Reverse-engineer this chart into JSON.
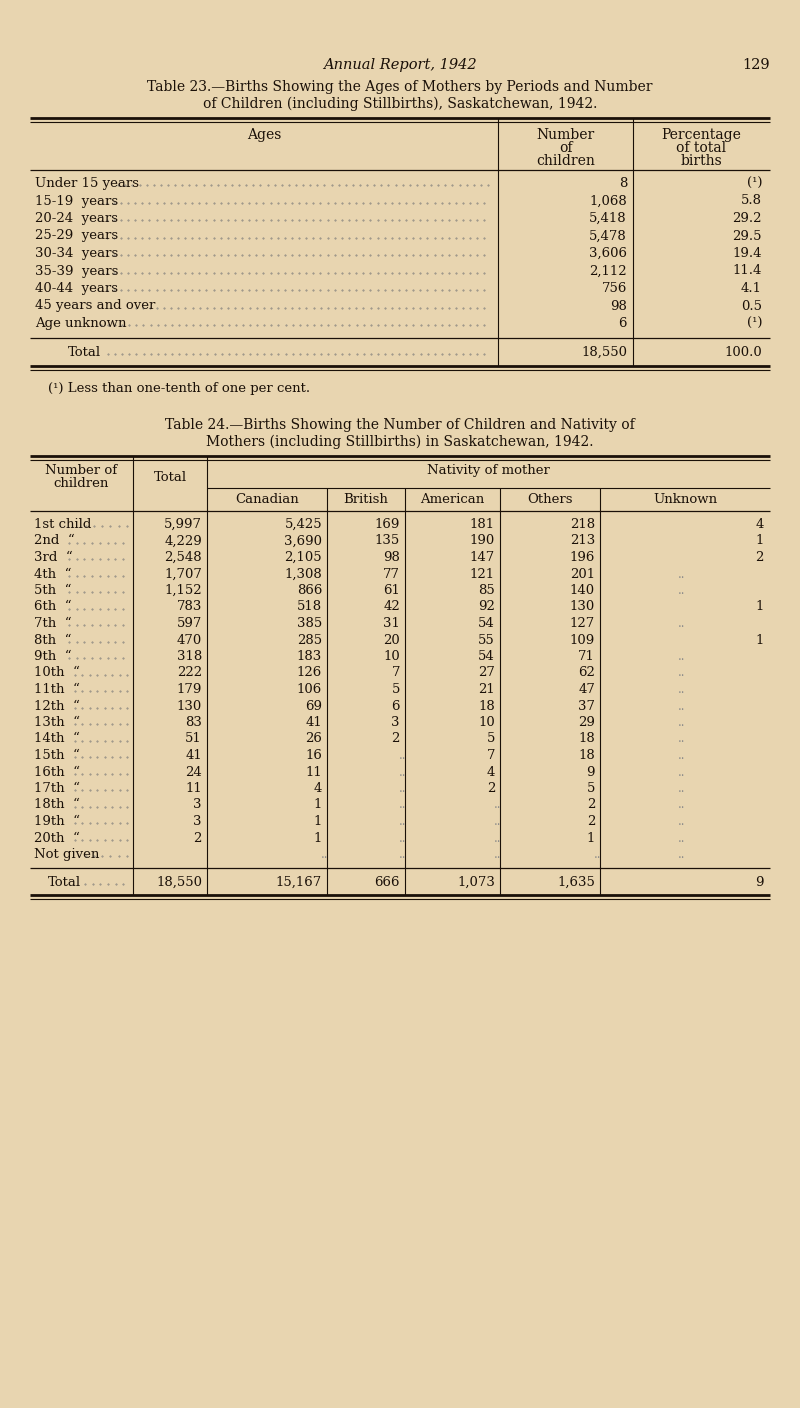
{
  "bg_color": "#e8d5b0",
  "text_color": "#1a1008",
  "page_header": "Annual Report, 1942",
  "page_number": "129",
  "table23_title_line1": "Table 23.—Births Showing the Ages of Mothers by Periods and Number",
  "table23_title_line2": "of Children (including Stillbirths), Saskatchewan, 1942.",
  "table23_rows": [
    [
      "Under 15 years",
      "8",
      "(¹)"
    ],
    [
      "15-19  years",
      "1,068",
      "5.8"
    ],
    [
      "20-24  years",
      "5,418",
      "29.2"
    ],
    [
      "25-29  years",
      "5,478",
      "29.5"
    ],
    [
      "30-34  years",
      "3,606",
      "19.4"
    ],
    [
      "35-39  years",
      "2,112",
      "11.4"
    ],
    [
      "40-44  years",
      "756",
      "4.1"
    ],
    [
      "45 years and over",
      "98",
      "0.5"
    ],
    [
      "Age unknown",
      "6",
      "(¹)"
    ]
  ],
  "table23_total_row": [
    "Total",
    "18,550",
    "100.0"
  ],
  "table23_footnote": "(¹) Less than one-tenth of one per cent.",
  "table24_title_line1": "Table 24.—Births Showing the Number of Children and Nativity of",
  "table24_title_line2": "Mothers (including Stillbirths) in Saskatchewan, 1942.",
  "table24_rows": [
    [
      "1st child",
      "5,997",
      "5,425",
      "169",
      "181",
      "218",
      "4"
    ],
    [
      "2nd  “",
      "4,229",
      "3,690",
      "135",
      "190",
      "213",
      "1"
    ],
    [
      "3rd  “",
      "2,548",
      "2,105",
      "98",
      "147",
      "196",
      "2"
    ],
    [
      "4th  “",
      "1,707",
      "1,308",
      "77",
      "121",
      "201",
      ""
    ],
    [
      "5th  “",
      "1,152",
      "866",
      "61",
      "85",
      "140",
      ""
    ],
    [
      "6th  “",
      "783",
      "518",
      "42",
      "92",
      "130",
      "1"
    ],
    [
      "7th  “",
      "597",
      "385",
      "31",
      "54",
      "127",
      ""
    ],
    [
      "8th  “",
      "470",
      "285",
      "20",
      "55",
      "109",
      "1"
    ],
    [
      "9th  “",
      "318",
      "183",
      "10",
      "54",
      "71",
      ""
    ],
    [
      "10th  “",
      "222",
      "126",
      "7",
      "27",
      "62",
      ""
    ],
    [
      "11th  “",
      "179",
      "106",
      "5",
      "21",
      "47",
      ""
    ],
    [
      "12th  “",
      "130",
      "69",
      "6",
      "18",
      "37",
      ""
    ],
    [
      "13th  “",
      "83",
      "41",
      "3",
      "10",
      "29",
      ""
    ],
    [
      "14th  “",
      "51",
      "26",
      "2",
      "5",
      "18",
      ""
    ],
    [
      "15th  “",
      "41",
      "16",
      "",
      "7",
      "18",
      ""
    ],
    [
      "16th  “",
      "24",
      "11",
      "",
      "4",
      "9",
      ""
    ],
    [
      "17th  “",
      "11",
      "4",
      "",
      "2",
      "5",
      ""
    ],
    [
      "18th  “",
      "3",
      "1",
      "",
      "",
      "2",
      ""
    ],
    [
      "19th  “",
      "3",
      "1",
      "",
      "",
      "2",
      ""
    ],
    [
      "20th  “",
      "2",
      "1",
      "",
      "",
      "1",
      ""
    ],
    [
      "Not given",
      "",
      "",
      "",
      "",
      "",
      ""
    ]
  ],
  "table24_total_row": [
    "Total",
    "18,550",
    "15,167",
    "666",
    "1,073",
    "1,635",
    "9"
  ]
}
